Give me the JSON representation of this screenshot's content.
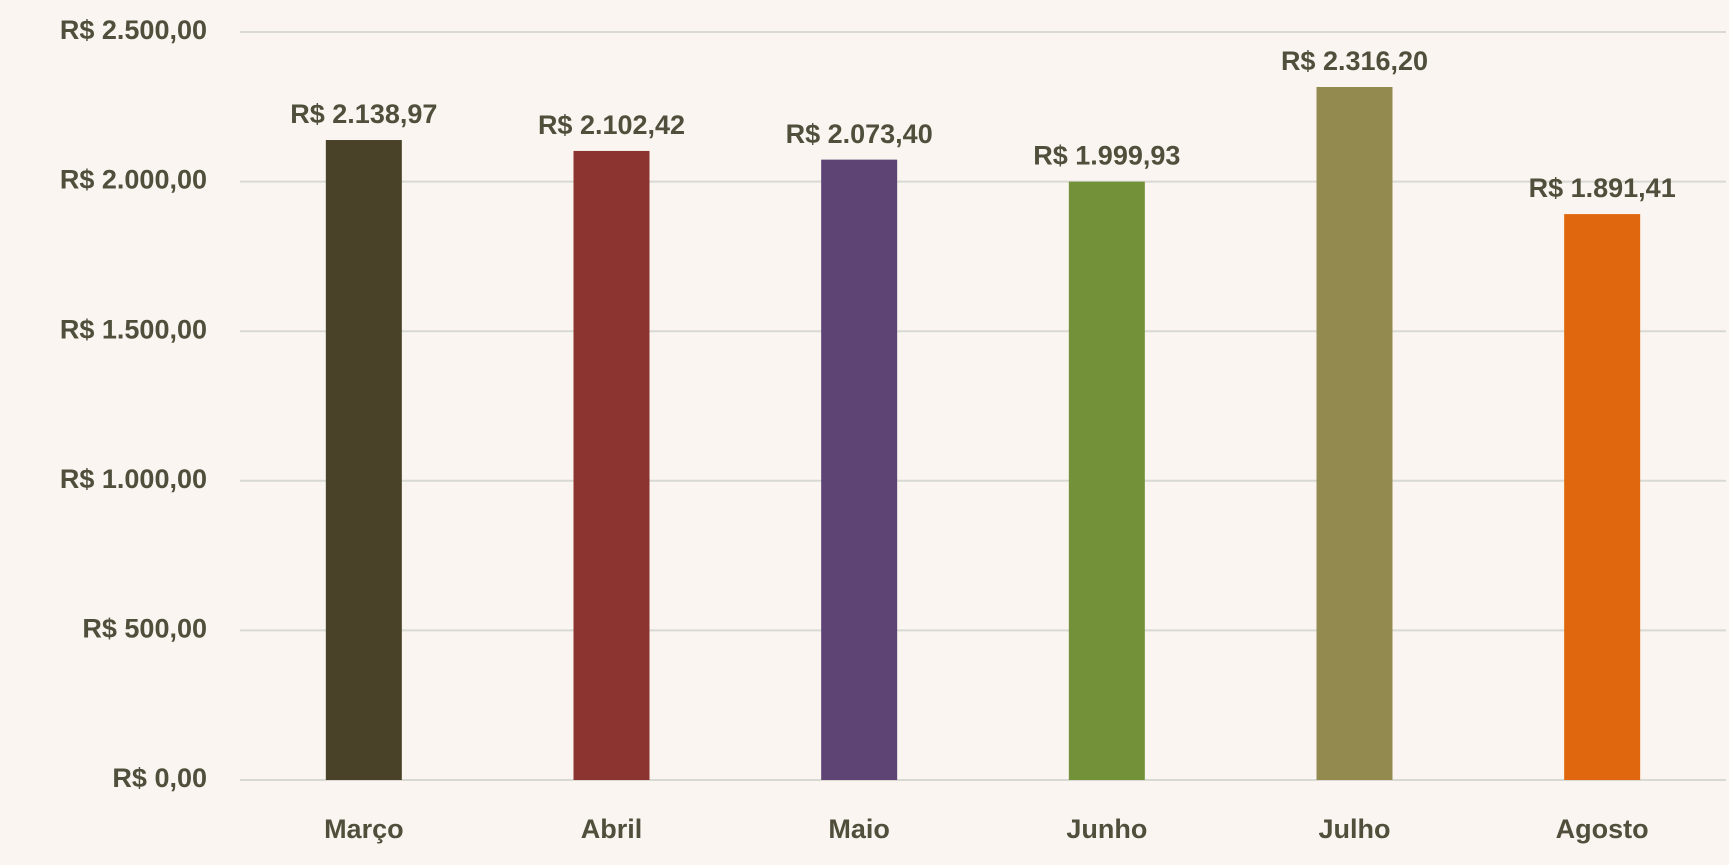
{
  "chart_data": {
    "type": "bar",
    "categories": [
      "Março",
      "Abril",
      "Maio",
      "Junho",
      "Julho",
      "Agosto"
    ],
    "values": [
      2138.97,
      2102.42,
      2073.4,
      1999.93,
      2316.2,
      1891.41
    ],
    "value_labels": [
      "R$ 2.138,97",
      "R$ 2.102,42",
      "R$ 2.073,40",
      "R$ 1.999,93",
      "R$ 2.316,20",
      "R$ 1.891,41"
    ],
    "colors": [
      "#4a4228",
      "#8c3430",
      "#5d4474",
      "#739139",
      "#938a50",
      "#e0670e"
    ],
    "ylim": [
      0,
      2500
    ],
    "yticks": [
      {
        "value": 0,
        "label": "R$ 0,00"
      },
      {
        "value": 500,
        "label": "R$ 500,00"
      },
      {
        "value": 1000,
        "label": "R$ 1.000,00"
      },
      {
        "value": 1500,
        "label": "R$ 1.500,00"
      },
      {
        "value": 2000,
        "label": "R$ 2.000,00"
      },
      {
        "value": 2500,
        "label": "R$ 2.500,00"
      }
    ],
    "grid": true
  }
}
